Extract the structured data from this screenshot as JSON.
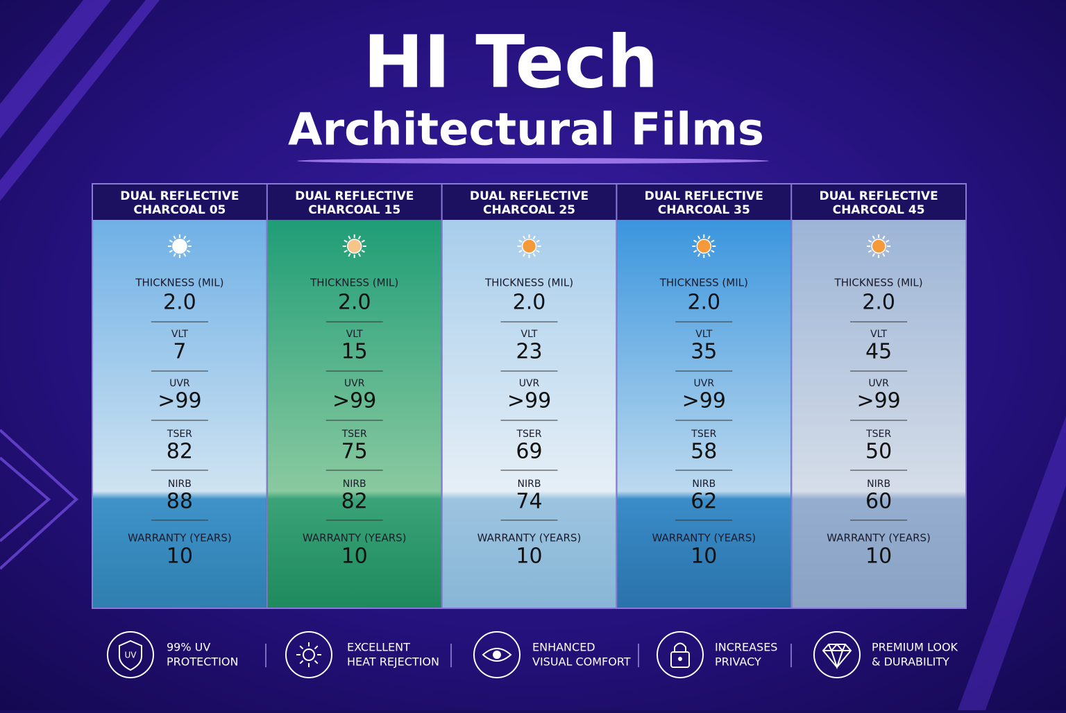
{
  "header": {
    "title": "HI Tech",
    "subtitle": "Architectural Films"
  },
  "spec_labels": [
    "THICKNESS (MIL)",
    "VLT",
    "UVR",
    "TSER",
    "NIRB",
    "WARRANTY (YEARS)"
  ],
  "products": [
    {
      "name": [
        "DUAL REFLECTIVE",
        "CHARCOAL 05"
      ],
      "values": [
        "2.0",
        7,
        ">99",
        82,
        88,
        10
      ]
    },
    {
      "name": [
        "DUAL REFLECTIVE",
        "CHARCOAL 15"
      ],
      "values": [
        "2.0",
        15,
        ">99",
        75,
        82,
        10
      ]
    },
    {
      "name": [
        "DUAL REFLECTIVE",
        "CHARCOAL 25"
      ],
      "values": [
        "2.0",
        23,
        ">99",
        69,
        74,
        10
      ]
    },
    {
      "name": [
        "DUAL REFLECTIVE",
        "CHARCOAL 35"
      ],
      "values": [
        "2.0",
        35,
        ">99",
        58,
        62,
        10
      ]
    },
    {
      "name": [
        "DUAL REFLECTIVE",
        "CHARCOAL 45"
      ],
      "values": [
        "2.0",
        45,
        ">99",
        50,
        60,
        10
      ]
    }
  ],
  "features": [
    {
      "icon": "UV",
      "text": [
        "99% UV",
        "PROTECTION"
      ]
    },
    {
      "text": [
        "EXCELLENT",
        "HEAT REJECTION"
      ]
    },
    {
      "text": [
        "ENHANCED",
        "VISUAL COMFORT"
      ]
    },
    {
      "text": [
        "INCREASES",
        "PRIVACY"
      ]
    },
    {
      "text": [
        "PREMIUM LOOK",
        "& DURABILITY"
      ]
    }
  ]
}
